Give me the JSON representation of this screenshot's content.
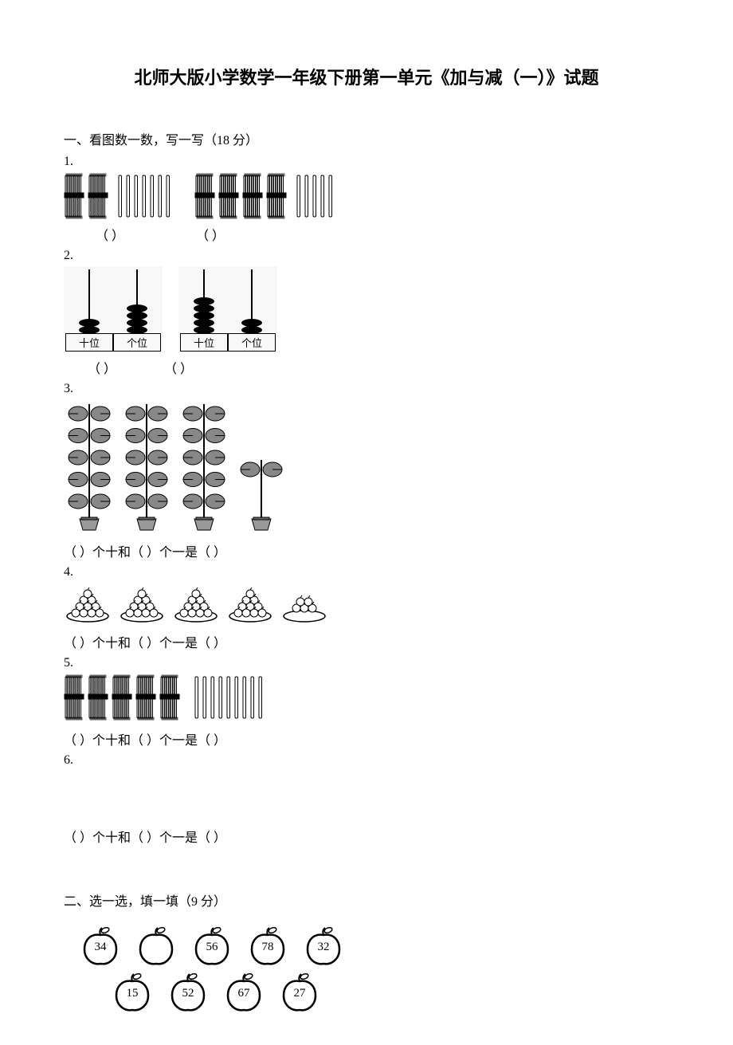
{
  "title": "北师大版小学数学一年级下册第一单元《加与减（一）》试题",
  "section1": {
    "header": "一、看图数一数，写一写（18 分）",
    "q1": {
      "num": "1.",
      "paren1": "（    ）",
      "paren2": "（    ）",
      "group1_bundles": 2,
      "group1_loose": 7,
      "group2_bundles": 4,
      "group2_loose": 5
    },
    "q2": {
      "num": "2.",
      "tens_label": "十位",
      "ones_label": "个位",
      "abacus1_tens": 2,
      "abacus1_ones": 4,
      "abacus2_tens": 5,
      "abacus2_ones": 2,
      "paren1": "（      ）",
      "paren2": "（      ）"
    },
    "q3": {
      "num": "3.",
      "fill": "（    ）个十和（    ）个一是（    ）",
      "full_plants": 3,
      "partial_leaves": 2
    },
    "q4": {
      "num": "4.",
      "fill": "（    ）个十和（    ）个一是（    ）",
      "full_plates": 4,
      "partial_fruits": 5
    },
    "q5": {
      "num": "5.",
      "fill": "（    ）个十和（    ）个一是（    ）",
      "bundles": 5,
      "loose": 9
    },
    "q6": {
      "num": "6.",
      "fill": "（    ）个十和（    ）个一是（    ）"
    }
  },
  "section2": {
    "header": "二、选一选，填一填（9 分）",
    "apples_row1": [
      "34",
      "",
      "56",
      "78",
      "32"
    ],
    "apples_row2": [
      "15",
      "52",
      "67",
      "27"
    ]
  },
  "colors": {
    "bg": "#ffffff",
    "text": "#000000",
    "dotted_bg": "#f8f8f8"
  }
}
